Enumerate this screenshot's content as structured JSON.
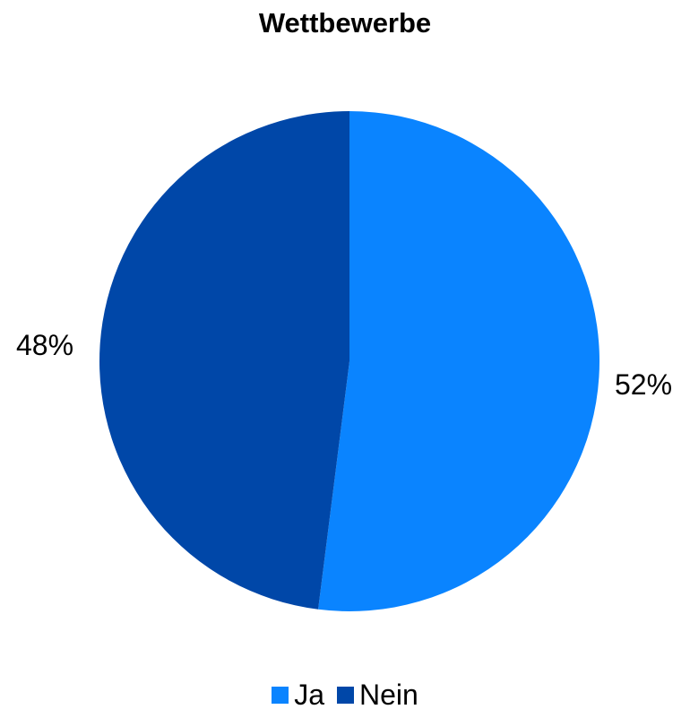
{
  "chart_data": {
    "type": "pie",
    "title": "Wettbewerbe",
    "categories": [
      "Ja",
      "Nein"
    ],
    "values": [
      52,
      48
    ],
    "labels": [
      "52%",
      "48%"
    ],
    "colors": [
      "#0a84ff",
      "#0047a8"
    ],
    "legend_position": "bottom"
  }
}
